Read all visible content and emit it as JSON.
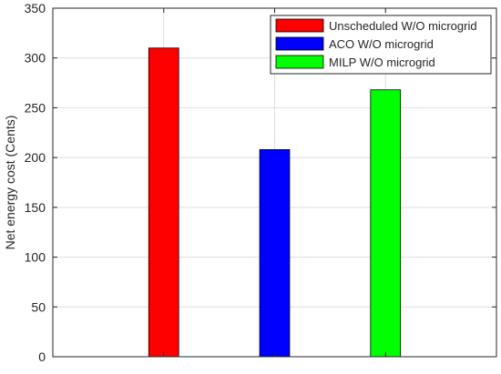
{
  "chart_data": {
    "type": "bar",
    "title": "",
    "xlabel": "",
    "ylabel": "Net energy cost (Cents)",
    "ylim": [
      0,
      350
    ],
    "yticks": [
      0,
      50,
      100,
      150,
      200,
      250,
      300,
      350
    ],
    "grid": true,
    "legend_position": "top-right",
    "series": [
      {
        "name": "Unscheduled W/O microgrid",
        "value": 310,
        "color": "#ff0000"
      },
      {
        "name": "ACO W/O microgrid",
        "value": 208,
        "color": "#0000ff"
      },
      {
        "name": "MILP W/O microgrid",
        "value": 268,
        "color": "#00ff00"
      }
    ]
  }
}
